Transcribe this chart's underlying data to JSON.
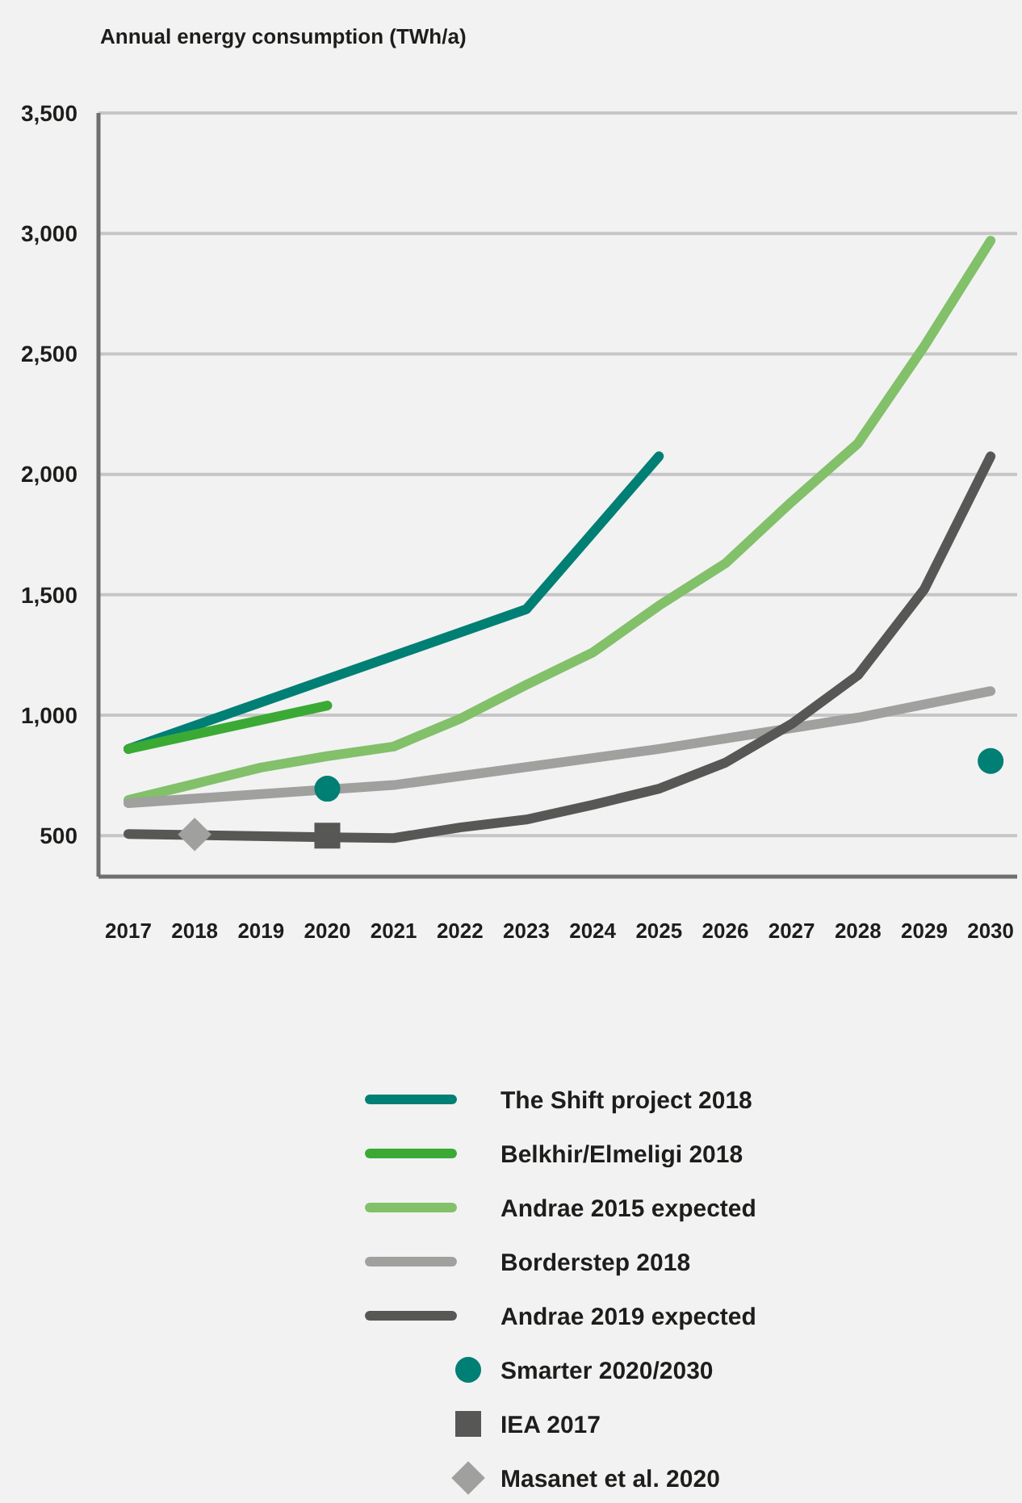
{
  "chart_data": {
    "type": "line",
    "ylabel": "Annual energy consumption (TWh/a)",
    "xlim": [
      2016.55,
      2030.4
    ],
    "xticks": [
      2017,
      2018,
      2019,
      2020,
      2021,
      2022,
      2023,
      2024,
      2025,
      2026,
      2027,
      2028,
      2029,
      2030
    ],
    "ylim": [
      330,
      3500
    ],
    "yticks": [
      500,
      {
        "value": 1000,
        "label": "1,000"
      },
      {
        "value": 1500,
        "label": "1,500"
      },
      {
        "value": 2000,
        "label": "2,000"
      },
      {
        "value": 2500,
        "label": "2,500"
      },
      {
        "value": 3000,
        "label": "3,000"
      },
      {
        "value": 3500,
        "label": "3,500"
      }
    ],
    "grid": "y",
    "legend": "bottom",
    "line_style": "solid",
    "series": [
      {
        "name": "The Shift project 2018",
        "color": "#007f74",
        "x": [
          2017,
          2023,
          2025
        ],
        "values": [
          860,
          1440,
          2075
        ]
      },
      {
        "name": "Belkhir/Elmeligi 2018",
        "color": "#3aaa35",
        "x": [
          2017,
          2020
        ],
        "values": [
          860,
          1040
        ]
      },
      {
        "name": "Andrae 2015 expected",
        "color": "#82c06a",
        "x": [
          2017,
          2018,
          2019,
          2020,
          2021,
          2022,
          2023,
          2024,
          2025,
          2026,
          2027,
          2028,
          2029,
          2030
        ],
        "values": [
          648,
          715,
          783,
          830,
          870,
          985,
          1126,
          1260,
          1455,
          1630,
          1886,
          2129,
          2532,
          2970
        ]
      },
      {
        "name": "Borderstep 2018",
        "color": "#a0a09f",
        "x": [
          2017,
          2021,
          2025,
          2028,
          2030
        ],
        "values": [
          635,
          710,
          860,
          990,
          1100
        ]
      },
      {
        "name": "Andrae 2019 expected",
        "color": "#575756",
        "x": [
          2017,
          2020,
          2021,
          2022,
          2023,
          2024,
          2025,
          2026,
          2027,
          2028,
          2029,
          2030
        ],
        "values": [
          507,
          493,
          490,
          534,
          567,
          628,
          695,
          803,
          964,
          1166,
          1523,
          2075
        ]
      },
      {
        "name": "Smarter 2020/2030",
        "type": "scatter",
        "marker": "circle",
        "color": "#007f74",
        "x": [
          2020,
          2030
        ],
        "values": [
          695,
          810
        ]
      },
      {
        "name": "IEA 2017",
        "type": "scatter",
        "marker": "square",
        "color": "#575756",
        "x": [
          2020
        ],
        "values": [
          500
        ]
      },
      {
        "name": "Masanet et al. 2020",
        "type": "scatter",
        "marker": "diamond",
        "color": "#a0a09f",
        "x": [
          2018
        ],
        "values": [
          505
        ]
      }
    ]
  }
}
